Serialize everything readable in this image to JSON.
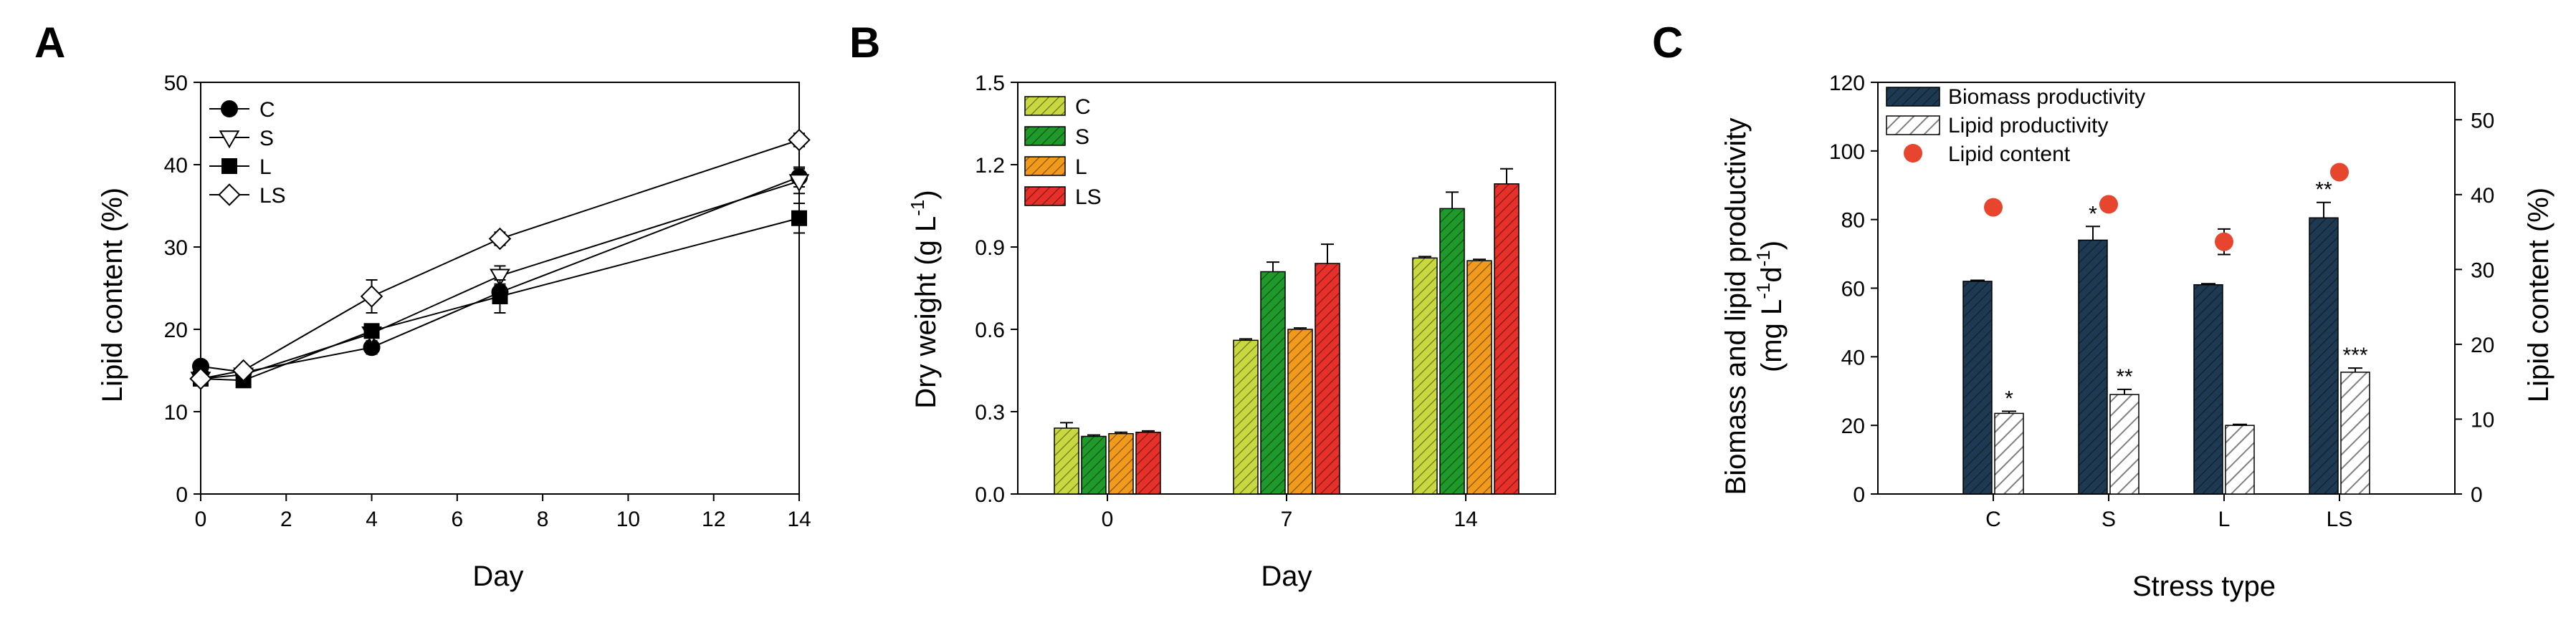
{
  "chart_data": [
    {
      "panel": "A",
      "type": "line",
      "xlabel": "Day",
      "ylabel": "Lipid content (%)",
      "xlim": [
        0,
        14
      ],
      "ylim": [
        0,
        50
      ],
      "xticks": [
        "0",
        "2",
        "4",
        "6",
        "8",
        "10",
        "12",
        "14"
      ],
      "yticks": [
        "0",
        "10",
        "20",
        "30",
        "40",
        "50"
      ],
      "x": [
        0,
        1,
        4,
        7,
        14
      ],
      "legend_position": "top-left",
      "series": [
        {
          "name": "C",
          "marker": "filled-circle",
          "values": [
            15.5,
            14.8,
            17.8,
            24.5,
            38.5
          ],
          "errors": [
            0.5,
            0.5,
            0.8,
            1.0,
            1.2
          ]
        },
        {
          "name": "S",
          "marker": "open-triangle-down",
          "values": [
            14.0,
            14.5,
            19.5,
            26.5,
            38.0
          ],
          "errors": [
            0.5,
            0.5,
            1.0,
            1.2,
            1.5
          ]
        },
        {
          "name": "L",
          "marker": "filled-square",
          "values": [
            14.0,
            13.8,
            19.8,
            24.0,
            33.5
          ],
          "errors": [
            0.5,
            0.5,
            0.8,
            2.0,
            1.8
          ]
        },
        {
          "name": "LS",
          "marker": "open-diamond",
          "values": [
            14.0,
            15.0,
            24.0,
            31.0,
            43.0
          ],
          "errors": [
            0.5,
            0.5,
            2.0,
            0.8,
            0.8
          ]
        }
      ]
    },
    {
      "panel": "B",
      "type": "bar",
      "xlabel": "Day",
      "ylabel": "Dry weight (g L",
      "ylabel_sup": "-1",
      "ylabel_end": ")",
      "ylim": [
        0,
        1.5
      ],
      "yticks": [
        "0.0",
        "0.3",
        "0.6",
        "0.9",
        "1.2",
        "1.5"
      ],
      "categories": [
        "0",
        "7",
        "14"
      ],
      "legend_position": "top-left",
      "series": [
        {
          "name": "C",
          "color": "#c8d840",
          "values": [
            0.24,
            0.56,
            0.86
          ],
          "errors": [
            0.02,
            0.005,
            0.005
          ]
        },
        {
          "name": "S",
          "color": "#1f9a2a",
          "values": [
            0.21,
            0.81,
            1.04
          ],
          "errors": [
            0.005,
            0.035,
            0.06
          ]
        },
        {
          "name": "L",
          "color": "#f29a1c",
          "values": [
            0.22,
            0.6,
            0.85
          ],
          "errors": [
            0.005,
            0.005,
            0.005
          ]
        },
        {
          "name": "LS",
          "color": "#e8302a",
          "values": [
            0.225,
            0.84,
            1.13
          ],
          "errors": [
            0.005,
            0.07,
            0.055
          ]
        }
      ]
    },
    {
      "panel": "C",
      "type": "bar",
      "xlabel": "Stress type",
      "ylabel_line1": "Biomass and lipid productivity",
      "ylabel_line2_a": "(mg L",
      "ylabel_line2_sup1": "-1",
      "ylabel_line2_b": "d",
      "ylabel_line2_sup2": "-1",
      "ylabel_line2_c": ")",
      "y2label": "Lipid content (%)",
      "ylim": [
        0,
        120
      ],
      "y2lim": [
        0,
        55
      ],
      "yticks": [
        "0",
        "20",
        "40",
        "60",
        "80",
        "100",
        "120"
      ],
      "y2ticks": [
        "0",
        "10",
        "20",
        "30",
        "40",
        "50"
      ],
      "categories": [
        "C",
        "S",
        "L",
        "LS"
      ],
      "legend_position": "top-left",
      "series": [
        {
          "name": "Biomass productivity",
          "color": "#1e3a52",
          "values": [
            62,
            74,
            61,
            80.5
          ],
          "errors": [
            0.3,
            4.0,
            0.3,
            4.5
          ],
          "annotations": [
            "",
            "*",
            "",
            "**"
          ]
        },
        {
          "name": "Lipid productivity",
          "color": "#e6e6e6",
          "values": [
            23.5,
            29,
            20,
            35.5
          ],
          "errors": [
            0.6,
            1.5,
            0.3,
            1.2
          ],
          "annotations": [
            "*",
            "**",
            "",
            "***"
          ]
        },
        {
          "name": "Lipid content",
          "color": "#e8452e",
          "axis": "right",
          "values": [
            38.3,
            38.7,
            33.7,
            43.0
          ],
          "errors": [
            0.5,
            0.5,
            1.7,
            0.5
          ]
        }
      ]
    }
  ]
}
